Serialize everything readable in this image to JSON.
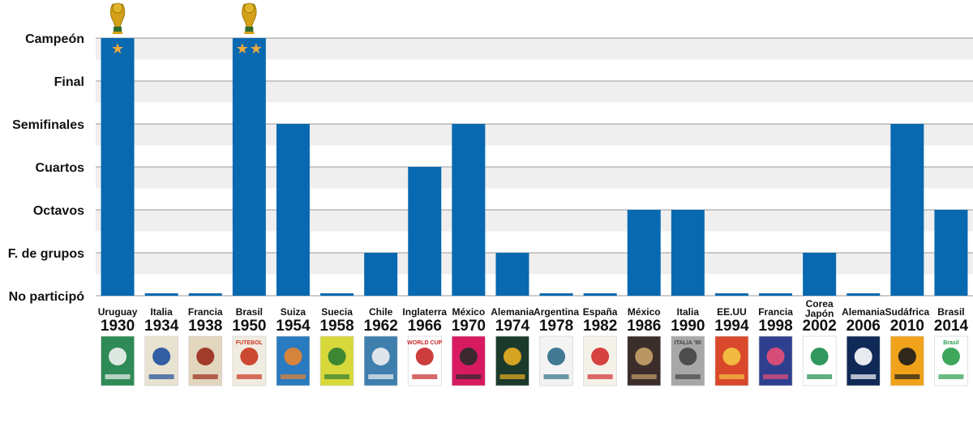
{
  "chart_data": {
    "type": "bar",
    "levels": [
      "No participó",
      "F. de grupos",
      "Octavos",
      "Cuartos",
      "Semifinales",
      "Final",
      "Campeón"
    ],
    "categories": [
      {
        "host": "Uruguay",
        "year": "1930"
      },
      {
        "host": "Italia",
        "year": "1934"
      },
      {
        "host": "Francia",
        "year": "1938"
      },
      {
        "host": "Brasil",
        "year": "1950"
      },
      {
        "host": "Suiza",
        "year": "1954"
      },
      {
        "host": "Suecia",
        "year": "1958"
      },
      {
        "host": "Chile",
        "year": "1962"
      },
      {
        "host": "Inglaterra",
        "year": "1966"
      },
      {
        "host": "México",
        "year": "1970"
      },
      {
        "host": "Alemania",
        "year": "1974"
      },
      {
        "host": "Argentina",
        "year": "1978"
      },
      {
        "host": "España",
        "year": "1982"
      },
      {
        "host": "México",
        "year": "1986"
      },
      {
        "host": "Italia",
        "year": "1990"
      },
      {
        "host": "EE.UU",
        "year": "1994"
      },
      {
        "host": "Francia",
        "year": "1998"
      },
      {
        "host": "Corea\nJapón",
        "year": "2002"
      },
      {
        "host": "Alemania",
        "year": "2006"
      },
      {
        "host": "Sudáfrica",
        "year": "2010"
      },
      {
        "host": "Brasil",
        "year": "2014"
      }
    ],
    "values": [
      6,
      0,
      0,
      6,
      4,
      0,
      1,
      3,
      4,
      1,
      0,
      0,
      2,
      2,
      0,
      0,
      1,
      0,
      4,
      2
    ],
    "stars": [
      1,
      0,
      0,
      2,
      0,
      0,
      0,
      0,
      0,
      0,
      0,
      0,
      0,
      0,
      0,
      0,
      0,
      0,
      0,
      0
    ],
    "ylim": [
      0,
      6
    ],
    "grid": true,
    "colors": {
      "bar": "#0869b0",
      "band": "#efefef",
      "grid": "#9a9a9a",
      "star": "#f2a93b",
      "trophy": "#d4a017"
    },
    "posters": [
      {
        "bg": "#2e8b57",
        "accent": "#f2f2f2",
        "text": ""
      },
      {
        "bg": "#e8e2d0",
        "accent": "#1f4f9c",
        "text": ""
      },
      {
        "bg": "#e2d6bf",
        "accent": "#9b2b1a",
        "text": ""
      },
      {
        "bg": "#f1ece2",
        "accent": "#c8361e",
        "text": "FUTEBOL"
      },
      {
        "bg": "#2a7ac0",
        "accent": "#e8852c",
        "text": ""
      },
      {
        "bg": "#d7d93a",
        "accent": "#2e7d32",
        "text": ""
      },
      {
        "bg": "#3f7fae",
        "accent": "#f0f0f0",
        "text": ""
      },
      {
        "bg": "#ffffff",
        "accent": "#c62828",
        "text": "WORLD CUP"
      },
      {
        "bg": "#d81b60",
        "accent": "#2b2b2b",
        "text": ""
      },
      {
        "bg": "#1b3a2b",
        "accent": "#e9b021",
        "text": ""
      },
      {
        "bg": "#f3f3f3",
        "accent": "#2e6d87",
        "text": ""
      },
      {
        "bg": "#f4f1e8",
        "accent": "#d32f2f",
        "text": ""
      },
      {
        "bg": "#3b2e2a",
        "accent": "#c9a26b",
        "text": ""
      },
      {
        "bg": "#a7a7a7",
        "accent": "#444444",
        "text": "ITALIA '90"
      },
      {
        "bg": "#d9482b",
        "accent": "#f4c542",
        "text": ""
      },
      {
        "bg": "#2f3f8f",
        "accent": "#e94e77",
        "text": ""
      },
      {
        "bg": "#ffffff",
        "accent": "#1c8c4c",
        "text": ""
      },
      {
        "bg": "#0f2a57",
        "accent": "#ffffff",
        "text": ""
      },
      {
        "bg": "#f0a21a",
        "accent": "#1b1b1b",
        "text": ""
      },
      {
        "bg": "#ffffff",
        "accent": "#2a9d4a",
        "text": "Brasil"
      }
    ]
  }
}
